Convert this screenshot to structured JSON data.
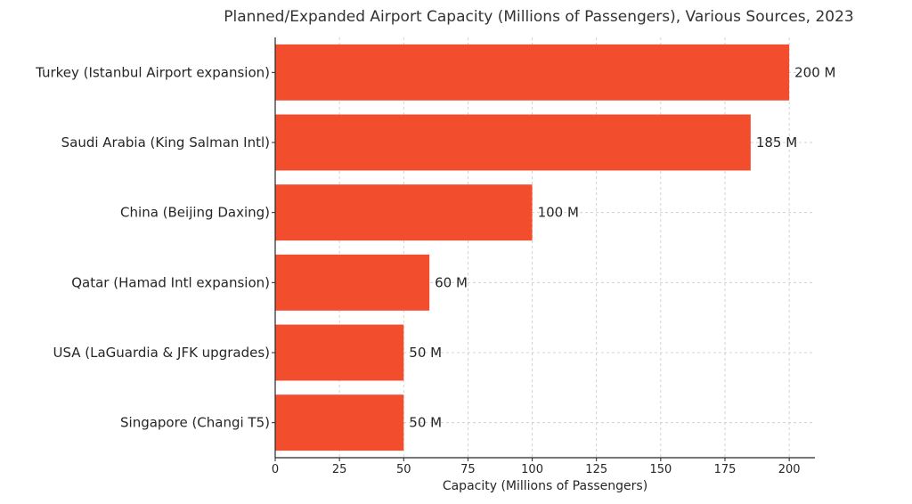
{
  "chart_data": {
    "type": "bar",
    "orientation": "horizontal",
    "title": "Planned/Expanded Airport Capacity (Millions of Passengers), Various Sources, 2023",
    "xlabel": "Capacity (Millions of Passengers)",
    "ylabel": "",
    "categories": [
      "Turkey (Istanbul Airport expansion)",
      "Saudi Arabia (King Salman Intl)",
      "China (Beijing Daxing)",
      "Qatar (Hamad Intl expansion)",
      "USA (LaGuardia & JFK upgrades)",
      "Singapore (Changi T5)"
    ],
    "values": [
      200,
      185,
      100,
      60,
      50,
      50
    ],
    "value_labels": [
      "200 M",
      "185 M",
      "100 M",
      "60 M",
      "50 M",
      "50 M"
    ],
    "xlim": [
      0,
      210
    ],
    "xticks": [
      0,
      25,
      50,
      75,
      100,
      125,
      150,
      175,
      200
    ],
    "xtick_labels": [
      "0",
      "25",
      "50",
      "75",
      "100",
      "125",
      "150",
      "175",
      "200"
    ],
    "grid": true,
    "bar_color": "#f24e2e"
  }
}
